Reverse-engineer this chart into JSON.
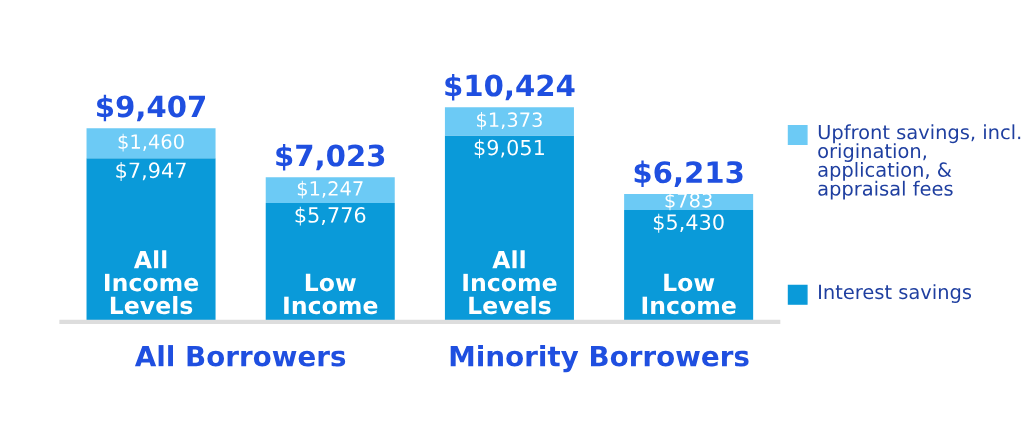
{
  "chart_data": {
    "type": "bar",
    "stacked": true,
    "categories": [
      "All Income Levels",
      "Low Income",
      "All Income Levels",
      "Low Income"
    ],
    "series": [
      {
        "name": "Interest savings",
        "color": "#0a9ad9",
        "values": [
          7947,
          5776,
          9051,
          5430
        ],
        "value_labels": [
          "$7,947",
          "$5,776",
          "$9,051",
          "$5,430"
        ]
      },
      {
        "name": "Upfront savings, incl. origination, application, & appraisal fees",
        "color": "#6ccaf5",
        "values": [
          1460,
          1247,
          1373,
          783
        ],
        "value_labels": [
          "$1,460",
          "$1,247",
          "$1,373",
          "$783"
        ]
      }
    ],
    "totals": [
      "$9,407",
      "$7,023",
      "$10,424",
      "$6,213"
    ],
    "annotations": [
      "All Borrowers",
      "Minority Borrowers"
    ],
    "legend": "right"
  }
}
